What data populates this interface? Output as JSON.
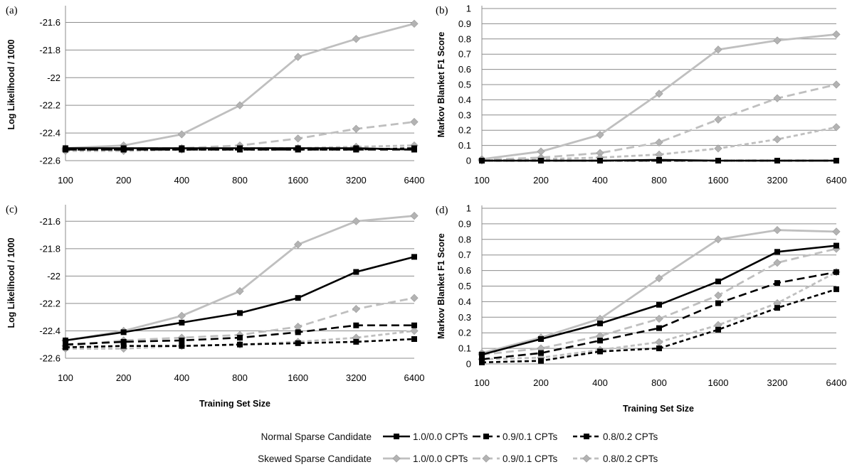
{
  "legend": {
    "groups": [
      {
        "label": "Normal Sparse Candidate",
        "entries": [
          "1.0/0.0 CPTs",
          "0.9/0.1 CPTs",
          "0.8/0.2 CPTs"
        ]
      },
      {
        "label": "Skewed Sparse Candidate",
        "entries": [
          "1.0/0.0 CPTs",
          "0.9/0.1 CPTs",
          "0.8/0.2 CPTs"
        ]
      }
    ]
  },
  "styles": {
    "colors": {
      "normal": "#000000",
      "skewed": "#bfbfbf",
      "skewed_marker": "#b3b3b3"
    },
    "dash": [
      "solid",
      "long-dash",
      "short-dash"
    ]
  },
  "chart_data": [
    {
      "panel": "(a)",
      "type": "line",
      "categories": [
        "100",
        "200",
        "400",
        "800",
        "1600",
        "3200",
        "6400"
      ],
      "ylabel": "Log Likelihood / 1000",
      "xlabel": "",
      "ylim": [
        -22.6,
        -21.5
      ],
      "yticks": [
        -22.6,
        -22.4,
        -22.2,
        -22,
        -21.8,
        -21.6
      ],
      "ytick_labels": [
        "-22.6",
        "-22.4",
        "-22.2",
        "-22",
        "-21.8",
        "-21.6"
      ],
      "series": [
        {
          "group": "Normal Sparse Candidate",
          "name": "1.0/0.0 CPTs",
          "values": [
            -22.51,
            -22.51,
            -22.51,
            -22.51,
            -22.51,
            -22.51,
            -22.52
          ]
        },
        {
          "group": "Normal Sparse Candidate",
          "name": "0.9/0.1 CPTs",
          "values": [
            -22.52,
            -22.52,
            -22.52,
            -22.52,
            -22.52,
            -22.52,
            -22.52
          ]
        },
        {
          "group": "Normal Sparse Candidate",
          "name": "0.8/0.2 CPTs",
          "values": [
            -22.52,
            -22.52,
            -22.52,
            -22.52,
            -22.52,
            -22.52,
            -22.51
          ]
        },
        {
          "group": "Skewed Sparse Candidate",
          "name": "1.0/0.0 CPTs",
          "values": [
            -22.51,
            -22.49,
            -22.41,
            -22.2,
            -21.85,
            -21.72,
            -21.61
          ]
        },
        {
          "group": "Skewed Sparse Candidate",
          "name": "0.9/0.1 CPTs",
          "values": [
            -22.52,
            -22.51,
            -22.51,
            -22.49,
            -22.44,
            -22.37,
            -22.32
          ]
        },
        {
          "group": "Skewed Sparse Candidate",
          "name": "0.8/0.2 CPTs",
          "values": [
            -22.53,
            -22.53,
            -22.52,
            -22.51,
            -22.51,
            -22.5,
            -22.49
          ]
        }
      ]
    },
    {
      "panel": "(b)",
      "type": "line",
      "categories": [
        "100",
        "200",
        "400",
        "800",
        "1600",
        "3200",
        "6400"
      ],
      "ylabel": "Markov Blanket F1 Score",
      "xlabel": "",
      "ylim": [
        0,
        1
      ],
      "yticks": [
        0,
        0.1,
        0.2,
        0.3,
        0.4,
        0.5,
        0.6,
        0.7,
        0.8,
        0.9,
        1
      ],
      "ytick_labels": [
        "0",
        "0.1",
        "0.2",
        "0.3",
        "0.4",
        "0.5",
        "0.6",
        "0.7",
        "0.8",
        "0.9",
        "1"
      ],
      "series": [
        {
          "group": "Normal Sparse Candidate",
          "name": "1.0/0.0 CPTs",
          "values": [
            0,
            0,
            0,
            0.005,
            0,
            0,
            0
          ]
        },
        {
          "group": "Normal Sparse Candidate",
          "name": "0.9/0.1 CPTs",
          "values": [
            0,
            0,
            0,
            0,
            0,
            0,
            0
          ]
        },
        {
          "group": "Normal Sparse Candidate",
          "name": "0.8/0.2 CPTs",
          "values": [
            0,
            0,
            0,
            0,
            0,
            0,
            0
          ]
        },
        {
          "group": "Skewed Sparse Candidate",
          "name": "1.0/0.0 CPTs",
          "values": [
            0.01,
            0.06,
            0.17,
            0.44,
            0.73,
            0.79,
            0.83
          ]
        },
        {
          "group": "Skewed Sparse Candidate",
          "name": "0.9/0.1 CPTs",
          "values": [
            0.005,
            0.02,
            0.05,
            0.12,
            0.27,
            0.41,
            0.5
          ]
        },
        {
          "group": "Skewed Sparse Candidate",
          "name": "0.8/0.2 CPTs",
          "values": [
            0,
            0.01,
            0.02,
            0.04,
            0.08,
            0.14,
            0.22
          ]
        }
      ]
    },
    {
      "panel": "(c)",
      "type": "line",
      "categories": [
        "100",
        "200",
        "400",
        "800",
        "1600",
        "3200",
        "6400"
      ],
      "ylabel": "Log Likelihood / 1000",
      "xlabel": "Training Set Size",
      "ylim": [
        -22.6,
        -21.5
      ],
      "yticks": [
        -22.6,
        -22.4,
        -22.2,
        -22,
        -21.8,
        -21.6
      ],
      "ytick_labels": [
        "-22.6",
        "-22.4",
        "-22.2",
        "-22",
        "-21.8",
        "-21.6"
      ],
      "series": [
        {
          "group": "Normal Sparse Candidate",
          "name": "1.0/0.0 CPTs",
          "values": [
            -22.47,
            -22.41,
            -22.34,
            -22.27,
            -22.16,
            -21.97,
            -21.86
          ]
        },
        {
          "group": "Normal Sparse Candidate",
          "name": "0.9/0.1 CPTs",
          "values": [
            -22.5,
            -22.48,
            -22.47,
            -22.45,
            -22.41,
            -22.36,
            -22.36
          ]
        },
        {
          "group": "Normal Sparse Candidate",
          "name": "0.8/0.2 CPTs",
          "values": [
            -22.52,
            -22.51,
            -22.51,
            -22.5,
            -22.49,
            -22.48,
            -22.46
          ]
        },
        {
          "group": "Skewed Sparse Candidate",
          "name": "1.0/0.0 CPTs",
          "values": [
            -22.47,
            -22.4,
            -22.29,
            -22.11,
            -21.77,
            -21.6,
            -21.56
          ]
        },
        {
          "group": "Skewed Sparse Candidate",
          "name": "0.9/0.1 CPTs",
          "values": [
            -22.51,
            -22.47,
            -22.45,
            -22.43,
            -22.37,
            -22.24,
            -22.16
          ]
        },
        {
          "group": "Skewed Sparse Candidate",
          "name": "0.8/0.2 CPTs",
          "values": [
            -22.53,
            -22.53,
            -22.51,
            -22.5,
            -22.48,
            -22.45,
            -22.4
          ]
        }
      ]
    },
    {
      "panel": "(d)",
      "type": "line",
      "categories": [
        "100",
        "200",
        "400",
        "800",
        "1600",
        "3200",
        "6400"
      ],
      "ylabel": "Markov Blanket F1 Score",
      "xlabel": "Training Set Size",
      "ylim": [
        0,
        1
      ],
      "yticks": [
        0,
        0.1,
        0.2,
        0.3,
        0.4,
        0.5,
        0.6,
        0.7,
        0.8,
        0.9,
        1
      ],
      "ytick_labels": [
        "0",
        "0.1",
        "0.2",
        "0.3",
        "0.4",
        "0.5",
        "0.6",
        "0.7",
        "0.8",
        "0.9",
        "1"
      ],
      "series": [
        {
          "group": "Normal Sparse Candidate",
          "name": "1.0/0.0 CPTs",
          "values": [
            0.06,
            0.16,
            0.26,
            0.38,
            0.53,
            0.72,
            0.76
          ]
        },
        {
          "group": "Normal Sparse Candidate",
          "name": "0.9/0.1 CPTs",
          "values": [
            0.03,
            0.07,
            0.15,
            0.23,
            0.39,
            0.52,
            0.59
          ]
        },
        {
          "group": "Normal Sparse Candidate",
          "name": "0.8/0.2 CPTs",
          "values": [
            0.01,
            0.02,
            0.08,
            0.1,
            0.22,
            0.36,
            0.48
          ]
        },
        {
          "group": "Skewed Sparse Candidate",
          "name": "1.0/0.0 CPTs",
          "values": [
            0.07,
            0.17,
            0.29,
            0.55,
            0.8,
            0.86,
            0.85
          ]
        },
        {
          "group": "Skewed Sparse Candidate",
          "name": "0.9/0.1 CPTs",
          "values": [
            0.06,
            0.1,
            0.18,
            0.29,
            0.44,
            0.65,
            0.74
          ]
        },
        {
          "group": "Skewed Sparse Candidate",
          "name": "0.8/0.2 CPTs",
          "values": [
            0.03,
            0.04,
            0.09,
            0.14,
            0.25,
            0.39,
            0.59
          ]
        }
      ]
    }
  ]
}
